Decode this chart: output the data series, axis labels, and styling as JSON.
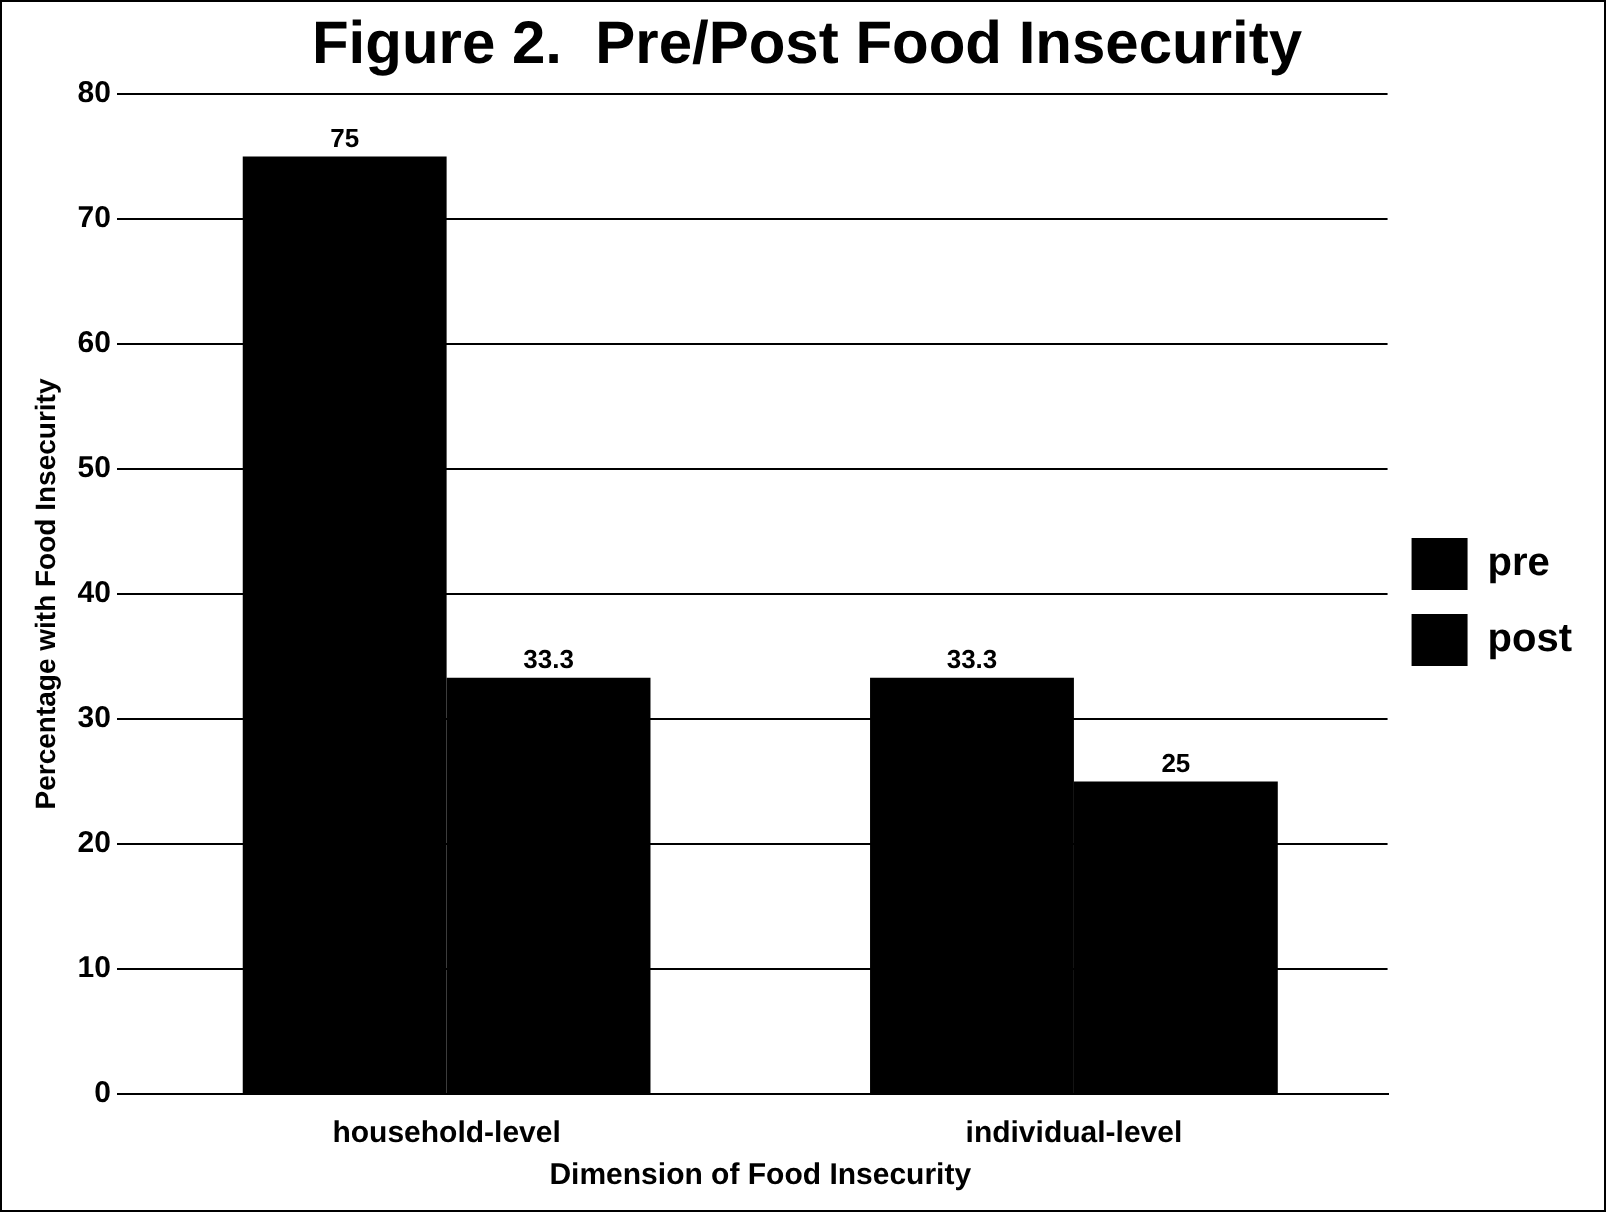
{
  "chart_data": {
    "type": "bar",
    "title": "Figure 2.  Pre/Post Food Insecurity",
    "xlabel": "Dimension of Food Insecurity",
    "ylabel": "Percentage with Food Insecurity",
    "categories": [
      "household-level",
      "individual-level"
    ],
    "series": [
      {
        "name": "pre",
        "color": "#000000",
        "values": [
          75,
          33.3
        ]
      },
      {
        "name": "post",
        "color": "#000000",
        "values": [
          33.3,
          25
        ]
      }
    ],
    "ylim": [
      0,
      80
    ],
    "yticks": [
      0,
      10,
      20,
      30,
      40,
      50,
      60,
      70,
      80
    ],
    "grid": "y",
    "legend": "right",
    "data_labels": true
  }
}
